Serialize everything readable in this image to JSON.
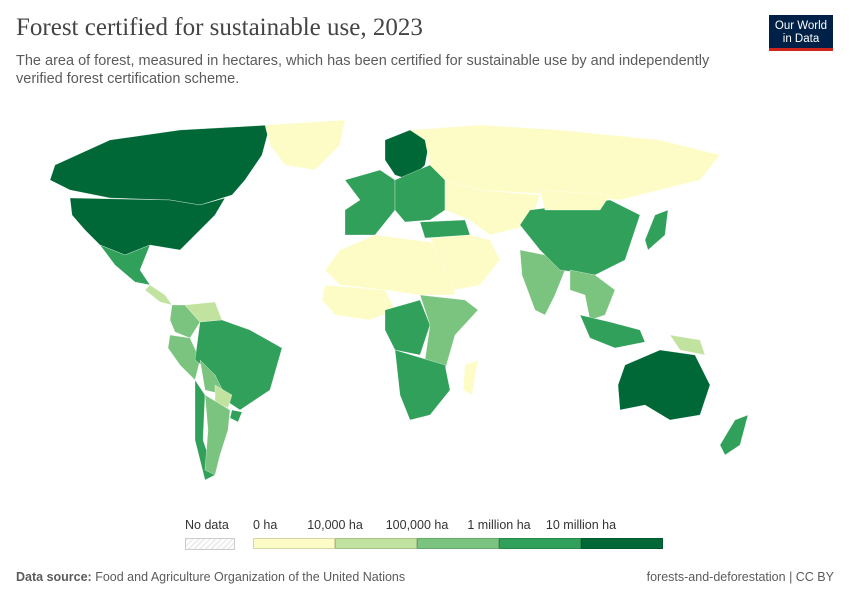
{
  "header": {
    "title": "Forest certified for sustainable use, 2023",
    "subtitle": "The area of forest, measured in hectares, which has been certified for sustainable use by and independently verified forest certification scheme.",
    "logo": "Our World in Data"
  },
  "chart_data": {
    "type": "choropleth",
    "title": "Forest certified for sustainable use, 2023",
    "year": 2023,
    "legend": {
      "no_data_label": "No data",
      "tick_labels": [
        "0 ha",
        "10,000 ha",
        "100,000 ha",
        "1 million ha",
        "10 million ha"
      ],
      "bins": [
        {
          "range": "0–10,000 ha",
          "color": "#fdfcc6"
        },
        {
          "range": "10,000–100,000 ha",
          "color": "#c1e39f"
        },
        {
          "range": "100,000–1 million ha",
          "color": "#7ac47f"
        },
        {
          "range": "1–10 million ha",
          "color": "#30a05a"
        },
        {
          "range": ">10 million ha",
          "color": "#006837"
        }
      ],
      "no_data_color": "#eeeeee",
      "placement": "bottom"
    },
    "regions": {
      "Canada": 4,
      "United States": 4,
      "Greenland": 0,
      "Mexico": 3,
      "Central America": 1,
      "Colombia": 2,
      "Venezuela": 1,
      "Peru": 2,
      "Brazil": 3,
      "Bolivia": 2,
      "Paraguay": 1,
      "Chile": 3,
      "Argentina": 2,
      "Uruguay": 3,
      "Western Europe": 3,
      "Scandinavia": 4,
      "Eastern Europe": 3,
      "Russia": 0,
      "Turkey": 3,
      "North Africa": 0,
      "West Africa": 0,
      "Central Africa": 3,
      "East Africa": 2,
      "Southern Africa": 3,
      "Madagascar": 0,
      "Middle East": 0,
      "Central Asia": 0,
      "India": 2,
      "China": 3,
      "Mongolia": 0,
      "Japan": 3,
      "Southeast Asia": 2,
      "Indonesia": 3,
      "Papua New Guinea": 1,
      "Australia": 4,
      "New Zealand": 3
    }
  },
  "footer": {
    "source_label": "Data source:",
    "source": "Food and Agriculture Organization of the United Nations",
    "right": "forests-and-deforestation | CC BY"
  }
}
